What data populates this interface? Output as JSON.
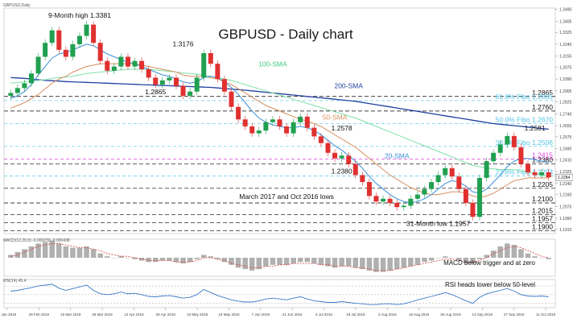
{
  "chart_data": {
    "type": "line",
    "title": "GBPUSD - Daily chart",
    "header_small": "GBPUSD,Daily",
    "x_ticks": [
      "8 Jan 2019",
      "28 Feb 2019",
      "15 Mar 2019",
      "29 Mar 2019",
      "12 Apr 2019",
      "26 Apr 2019",
      "10 May 2019",
      "24 May 2019",
      "7 Jun 2019",
      "21 Jun 2019",
      "5 Jul 2019",
      "19 Jul 2019",
      "2 Aug 2019",
      "16 Aug 2019",
      "30 Aug 2019",
      "13 Sep 2019",
      "27 Sep 2019",
      "11 Oct 2019"
    ],
    "y_ticks": [
      "1.3490",
      "1.3405",
      "1.3325",
      "1.3240",
      "1.3155",
      "1.3075",
      "1.2990",
      "1.2905",
      "1.2825",
      "1.2740",
      "1.2655",
      "1.2575",
      "1.2490",
      "1.2410",
      "1.2325",
      "1.2240",
      "1.2160",
      "1.2075",
      "1.1990",
      "1.1910"
    ],
    "ylim": [
      1.188,
      1.35
    ],
    "current_price": "1.2284",
    "price_close": [
      1.289,
      1.2925,
      1.296,
      1.303,
      1.315,
      1.325,
      1.334,
      1.32,
      1.315,
      1.324,
      1.33,
      1.3381,
      1.325,
      1.312,
      1.305,
      1.308,
      1.315,
      1.308,
      1.312,
      1.306,
      1.3,
      1.295,
      1.298,
      1.3,
      1.294,
      1.287,
      1.29,
      1.3,
      1.3176,
      1.31,
      1.299,
      1.29,
      1.279,
      1.27,
      1.265,
      1.26,
      1.262,
      1.268,
      1.27,
      1.265,
      1.26,
      1.268,
      1.272,
      1.264,
      1.2578,
      1.253,
      1.246,
      1.242,
      1.244,
      1.238,
      1.23,
      1.225,
      1.215,
      1.211,
      1.213,
      1.21,
      1.207,
      1.208,
      1.213,
      1.216,
      1.22,
      1.225,
      1.23,
      1.235,
      1.229,
      1.22,
      1.21,
      1.2,
      1.228,
      1.24,
      1.246,
      1.252,
      1.2581,
      1.25,
      1.238,
      1.232,
      1.23,
      1.232,
      1.2284
    ],
    "sma20": [
      1.285,
      1.287,
      1.29,
      1.295,
      1.302,
      1.308,
      1.314,
      1.317,
      1.318,
      1.32,
      1.322,
      1.324,
      1.323,
      1.32,
      1.317,
      1.315,
      1.313,
      1.311,
      1.31,
      1.308,
      1.306,
      1.304,
      1.302,
      1.301,
      1.299,
      1.297,
      1.296,
      1.297,
      1.3,
      1.301,
      1.3,
      1.297,
      1.293,
      1.288,
      1.282,
      1.276,
      1.271,
      1.268,
      1.266,
      1.265,
      1.264,
      1.264,
      1.265,
      1.264,
      1.262,
      1.259,
      1.255,
      1.251,
      1.248,
      1.244,
      1.24,
      1.235,
      1.229,
      1.224,
      1.22,
      1.216,
      1.213,
      1.211,
      1.21,
      1.211,
      1.213,
      1.216,
      1.22,
      1.224,
      1.226,
      1.225,
      1.222,
      1.218,
      1.217,
      1.22,
      1.225,
      1.23,
      1.236,
      1.24,
      1.242,
      1.242,
      1.241,
      1.24,
      1.239
    ],
    "sma50": [
      1.278,
      1.28,
      1.282,
      1.285,
      1.288,
      1.292,
      1.296,
      1.299,
      1.301,
      1.304,
      1.306,
      1.308,
      1.309,
      1.31,
      1.31,
      1.31,
      1.31,
      1.31,
      1.31,
      1.309,
      1.308,
      1.307,
      1.306,
      1.305,
      1.304,
      1.302,
      1.301,
      1.301,
      1.301,
      1.3,
      1.299,
      1.297,
      1.295,
      1.292,
      1.289,
      1.286,
      1.283,
      1.28,
      1.278,
      1.276,
      1.274,
      1.272,
      1.27,
      1.269,
      1.267,
      1.265,
      1.262,
      1.259,
      1.256,
      1.253,
      1.25,
      1.246,
      1.242,
      1.238,
      1.234,
      1.23,
      1.227,
      1.224,
      1.221,
      1.219,
      1.217,
      1.216,
      1.216,
      1.217,
      1.218,
      1.218,
      1.217,
      1.215,
      1.214,
      1.215,
      1.217,
      1.22,
      1.223,
      1.226,
      1.227,
      1.228,
      1.228,
      1.228,
      1.228
    ],
    "sma100": [
      1.296,
      1.2965,
      1.297,
      1.2975,
      1.298,
      1.2985,
      1.2995,
      1.3,
      1.3005,
      1.301,
      1.302,
      1.303,
      1.3035,
      1.304,
      1.3045,
      1.305,
      1.3055,
      1.306,
      1.306,
      1.306,
      1.306,
      1.3055,
      1.305,
      1.3045,
      1.304,
      1.3035,
      1.303,
      1.3025,
      1.302,
      1.301,
      1.3,
      1.299,
      1.298,
      1.2965,
      1.295,
      1.2935,
      1.292,
      1.2905,
      1.289,
      1.2875,
      1.286,
      1.2845,
      1.283,
      1.2815,
      1.28,
      1.2785,
      1.277,
      1.2755,
      1.274,
      1.2725,
      1.271,
      1.269,
      1.267,
      1.265,
      1.263,
      1.261,
      1.259,
      1.257,
      1.255,
      1.253,
      1.251,
      1.249,
      1.247,
      1.245,
      1.243,
      1.241,
      1.239,
      1.237,
      1.236,
      1.235,
      1.2345,
      1.234,
      1.234,
      1.234,
      1.233,
      1.232,
      1.231,
      1.23,
      1.229
    ],
    "sma200": [
      1.3,
      1.2998,
      1.2995,
      1.299,
      1.2985,
      1.298,
      1.2978,
      1.2975,
      1.2972,
      1.297,
      1.2968,
      1.2966,
      1.2964,
      1.2962,
      1.296,
      1.2958,
      1.2956,
      1.2954,
      1.2952,
      1.295,
      1.2948,
      1.2946,
      1.2944,
      1.2942,
      1.294,
      1.2938,
      1.2936,
      1.2934,
      1.2932,
      1.293,
      1.2926,
      1.2922,
      1.2918,
      1.2914,
      1.291,
      1.2905,
      1.29,
      1.2895,
      1.289,
      1.2885,
      1.288,
      1.2875,
      1.287,
      1.2865,
      1.286,
      1.2855,
      1.285,
      1.2845,
      1.284,
      1.2835,
      1.283,
      1.2822,
      1.2814,
      1.2806,
      1.2798,
      1.279,
      1.2782,
      1.2774,
      1.2766,
      1.2758,
      1.275,
      1.2742,
      1.2734,
      1.2726,
      1.2718,
      1.271,
      1.2702,
      1.2694,
      1.2686,
      1.2678,
      1.267,
      1.2665,
      1.266,
      1.2655,
      1.265,
      1.2645,
      1.264,
      1.2635,
      1.263
    ],
    "levels": [
      {
        "label": "1.2865",
        "value": 1.2865,
        "color": "#000000"
      },
      {
        "label": "61.8% Fibo 1.2835",
        "value": 1.2835,
        "color": "#4fc4e8"
      },
      {
        "label": "1.2760",
        "value": 1.276,
        "color": "#000000"
      },
      {
        "label": "50.0% Fibo 1.2670",
        "value": 1.267,
        "color": "#4fc4e8"
      },
      {
        "label": "38.2% Fibo 1.2506",
        "value": 1.2506,
        "color": "#4fc4e8"
      },
      {
        "label": "1.2415",
        "value": 1.2415,
        "color": "#e040e0"
      },
      {
        "label": "1.2380",
        "value": 1.238,
        "color": "#000000"
      },
      {
        "label": "23.6% Fibo 1.2293",
        "value": 1.2293,
        "color": "#4fc4e8"
      },
      {
        "label": "1.2205",
        "value": 1.2205,
        "color": "#000000"
      },
      {
        "label": "1.2100",
        "value": 1.21,
        "color": "#000000"
      },
      {
        "label": "1.2015",
        "value": 1.2015,
        "color": "#000000"
      },
      {
        "label": "1.1957",
        "value": 1.1957,
        "color": "#000000"
      },
      {
        "label": "1.1900",
        "value": 1.19,
        "color": "#000000"
      }
    ],
    "annotations": [
      {
        "text": "9-Month high 1.3381",
        "i": 10,
        "v": 1.343
      },
      {
        "text": "1.3176",
        "i": 25,
        "v": 1.3225
      },
      {
        "text": "1.2865",
        "i": 21,
        "v": 1.288
      },
      {
        "text": "100-SMA",
        "i": 38,
        "v": 1.308
      },
      {
        "text": "200-SMA",
        "i": 49,
        "v": 1.2925
      },
      {
        "text": "50-SMA",
        "i": 47,
        "v": 1.27
      },
      {
        "text": "1.2578",
        "i": 48,
        "v": 1.262
      },
      {
        "text": "1.2581",
        "i": 76,
        "v": 1.262
      },
      {
        "text": "20-SMA",
        "i": 56,
        "v": 1.242
      },
      {
        "text": "1.2380",
        "i": 48,
        "v": 1.231
      },
      {
        "text": "March 2017 and Oct 2016 lows",
        "i": 40,
        "v": 1.213
      },
      {
        "text": "31-Month low 1.1957",
        "i": 62,
        "v": 1.1935
      }
    ],
    "series_colors": {
      "sma20": "#3a8fd8",
      "sma50": "#d89060",
      "sma100": "#7fe0a8",
      "sma200": "#2040a0",
      "up": "#20a050",
      "down": "#e03030",
      "bg_fibo": "#4fc4e8"
    },
    "macd": {
      "header": "MACD(12,26,9) -0.000230 -0.000438",
      "label": "MACD below trigger and at zero",
      "hist": [
        0.2,
        0.4,
        0.6,
        0.8,
        1.0,
        1.1,
        1.2,
        1.0,
        0.8,
        0.7,
        0.7,
        0.8,
        0.6,
        0.3,
        0.1,
        0.0,
        0.1,
        0.0,
        -0.1,
        -0.2,
        -0.3,
        -0.3,
        -0.2,
        -0.2,
        -0.3,
        -0.4,
        -0.3,
        -0.1,
        0.2,
        0.1,
        -0.1,
        -0.3,
        -0.5,
        -0.7,
        -0.8,
        -0.9,
        -0.8,
        -0.6,
        -0.5,
        -0.5,
        -0.5,
        -0.4,
        -0.3,
        -0.3,
        -0.4,
        -0.5,
        -0.6,
        -0.7,
        -0.6,
        -0.6,
        -0.7,
        -0.8,
        -0.9,
        -1.0,
        -1.0,
        -0.9,
        -0.8,
        -0.7,
        -0.6,
        -0.5,
        -0.3,
        -0.2,
        0.0,
        0.1,
        0.0,
        -0.2,
        -0.4,
        -0.4,
        -0.1,
        0.2,
        0.5,
        0.8,
        1.0,
        0.9,
        0.6,
        0.3,
        0.1,
        0.0,
        -0.1
      ],
      "signal": [
        0.1,
        0.2,
        0.4,
        0.6,
        0.8,
        0.9,
        1.0,
        1.0,
        0.9,
        0.8,
        0.7,
        0.7,
        0.6,
        0.5,
        0.3,
        0.2,
        0.1,
        0.1,
        0.0,
        -0.1,
        -0.2,
        -0.2,
        -0.2,
        -0.2,
        -0.3,
        -0.3,
        -0.3,
        -0.2,
        0.0,
        0.0,
        -0.1,
        -0.2,
        -0.4,
        -0.5,
        -0.6,
        -0.7,
        -0.7,
        -0.6,
        -0.6,
        -0.5,
        -0.5,
        -0.4,
        -0.4,
        -0.4,
        -0.4,
        -0.5,
        -0.5,
        -0.6,
        -0.6,
        -0.6,
        -0.7,
        -0.7,
        -0.8,
        -0.9,
        -0.9,
        -0.9,
        -0.8,
        -0.7,
        -0.6,
        -0.5,
        -0.4,
        -0.3,
        -0.2,
        -0.1,
        -0.1,
        -0.2,
        -0.3,
        -0.3,
        -0.2,
        0.0,
        0.3,
        0.5,
        0.7,
        0.8,
        0.7,
        0.5,
        0.3,
        0.1,
        0.0
      ],
      "color": "#cf4040"
    },
    "rsi": {
      "header": "RSI(14) 45.4",
      "label": "RSI heads lower below 50-level",
      "levels": [
        70,
        50,
        30
      ],
      "values": [
        58,
        60,
        63,
        66,
        70,
        72,
        74,
        65,
        60,
        64,
        68,
        72,
        60,
        52,
        50,
        52,
        56,
        52,
        53,
        50,
        46,
        45,
        47,
        48,
        45,
        42,
        44,
        50,
        62,
        55,
        48,
        43,
        38,
        35,
        33,
        33,
        36,
        40,
        42,
        40,
        38,
        42,
        45,
        40,
        36,
        34,
        32,
        32,
        34,
        32,
        30,
        29,
        27,
        27,
        29,
        29,
        27,
        29,
        33,
        38,
        42,
        46,
        50,
        55,
        50,
        43,
        36,
        30,
        44,
        52,
        56,
        60,
        64,
        58,
        50,
        47,
        46,
        47,
        45
      ],
      "color": "#3a78c8"
    }
  }
}
